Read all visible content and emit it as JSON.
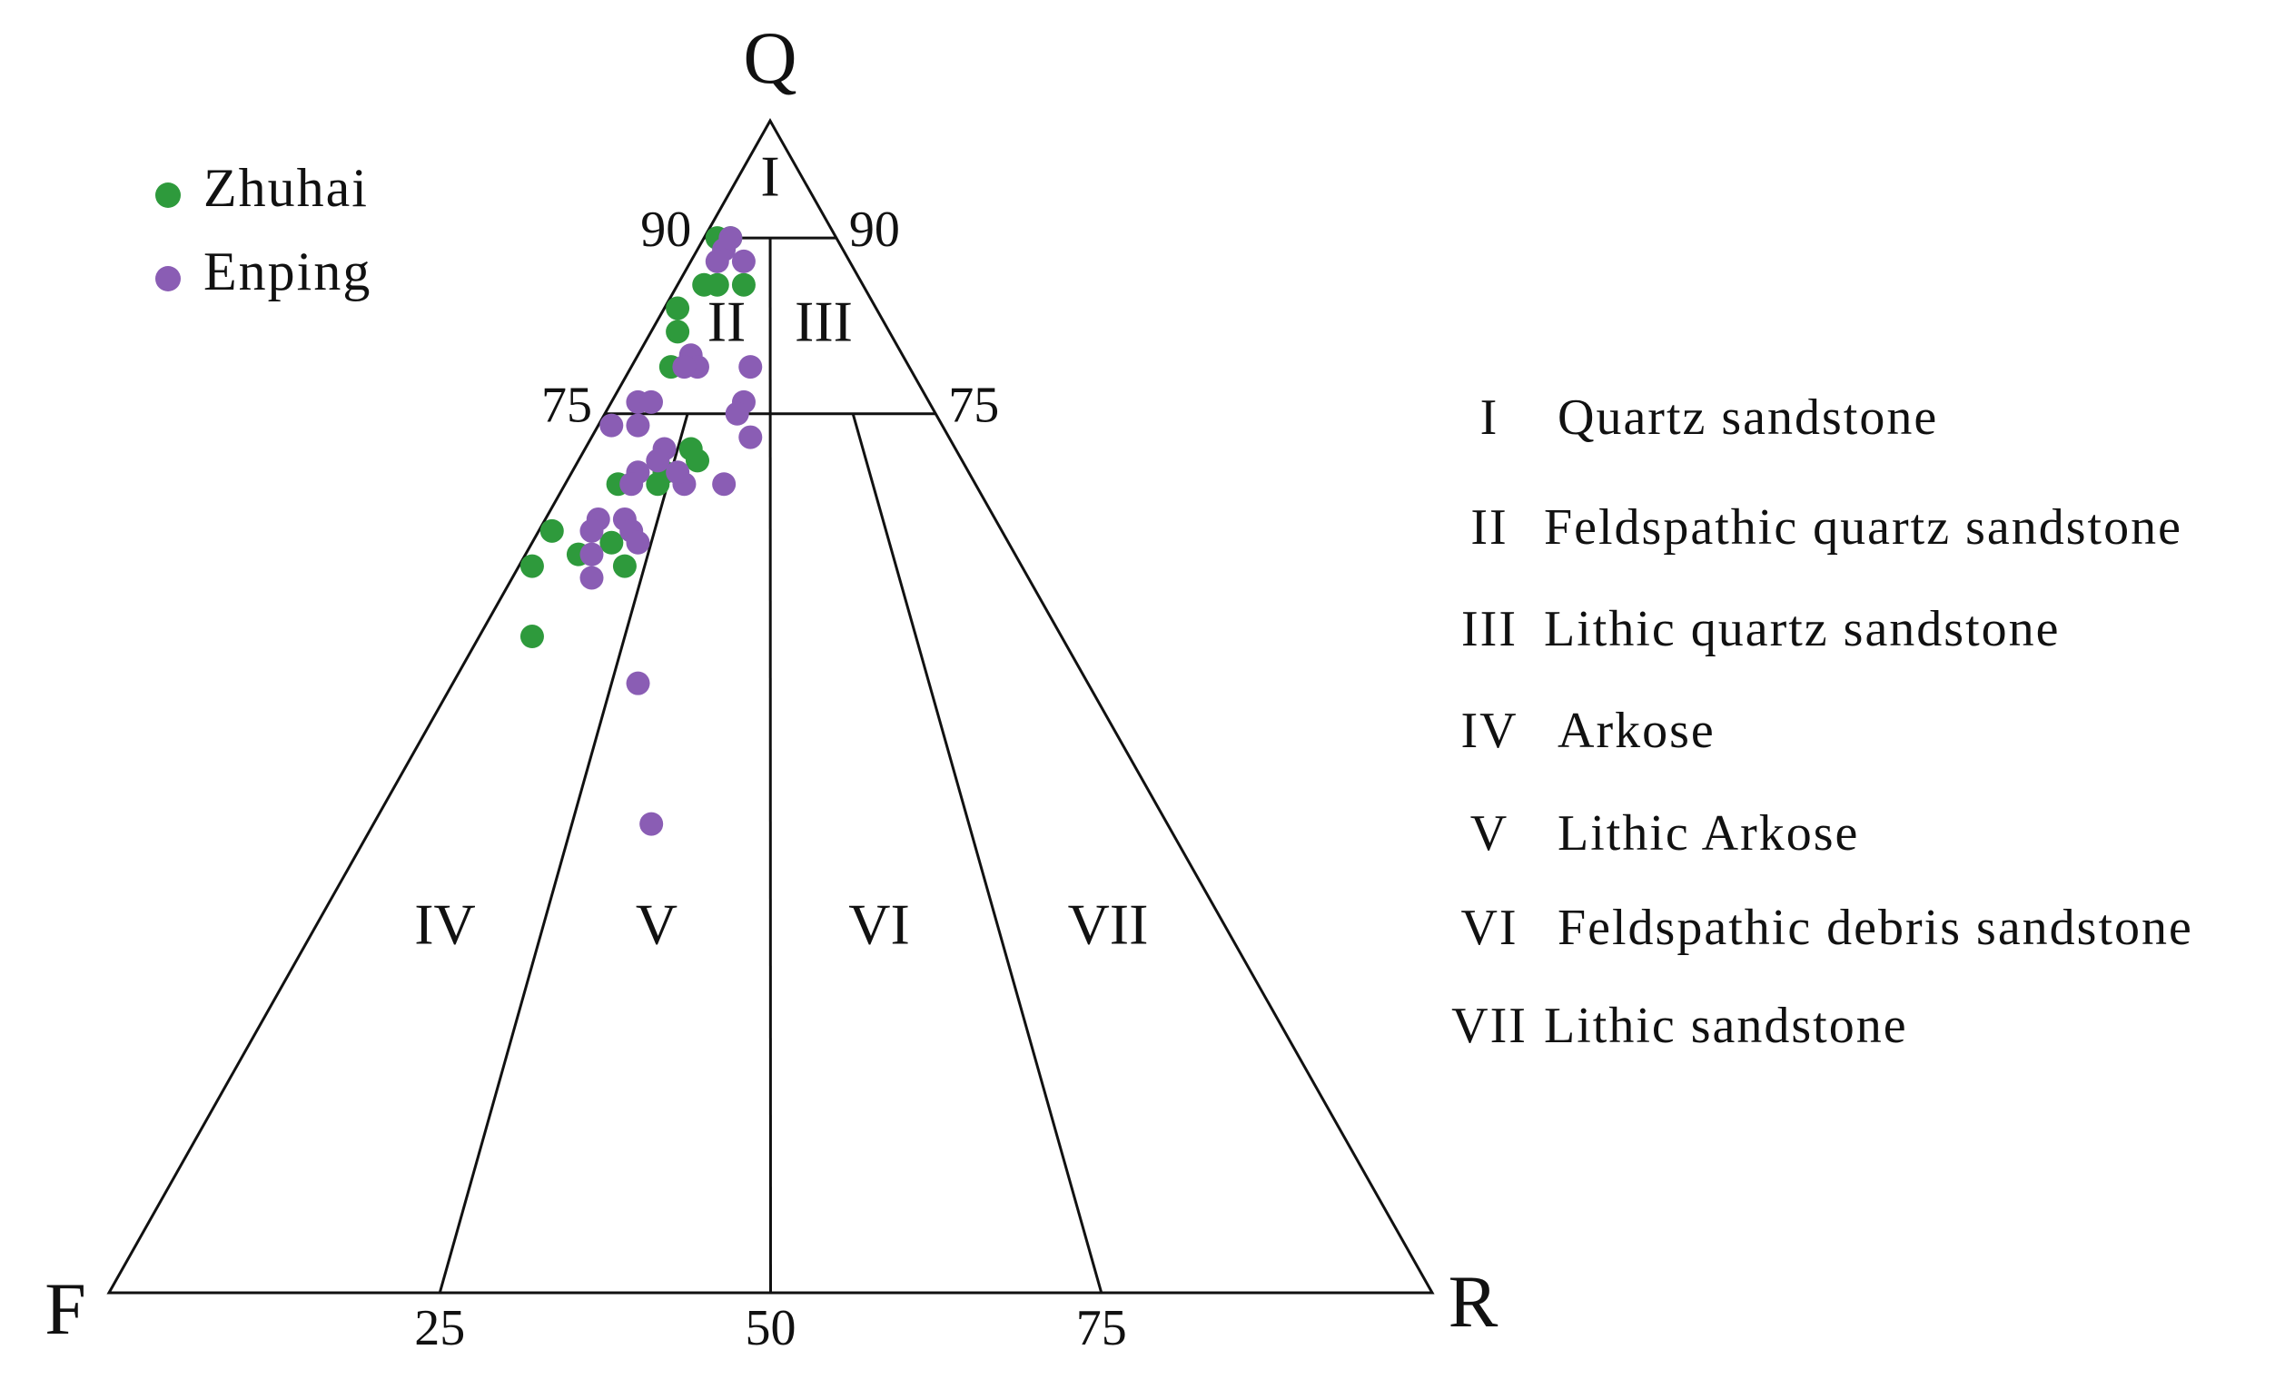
{
  "chart_data": {
    "type": "ternary",
    "vertices": {
      "top": "Q",
      "left": "F",
      "right": "R"
    },
    "q_ticks": [
      90,
      75
    ],
    "base_ticks": [
      25,
      50,
      75
    ],
    "fields": [
      {
        "numeral": "I",
        "name": "Quartz sandstone"
      },
      {
        "numeral": "II",
        "name": "Feldspathic quartz sandstone"
      },
      {
        "numeral": "III",
        "name": "Lithic quartz sandstone"
      },
      {
        "numeral": "IV",
        "name": "Arkose"
      },
      {
        "numeral": "V",
        "name": "Lithic Arkose"
      },
      {
        "numeral": "VI",
        "name": "Feldspathic debris sandstone"
      },
      {
        "numeral": "VII",
        "name": "Lithic sandstone"
      }
    ],
    "series": [
      {
        "name": "Zhuhai",
        "color": "#2e9a3c",
        "Q": [
          90,
          90,
          86,
          86,
          86,
          84,
          82,
          79,
          72,
          71,
          70,
          69,
          69,
          65,
          62,
          63,
          64,
          62,
          56,
          70
        ],
        "F": [
          9,
          8,
          12,
          11,
          9,
          15,
          16,
          18,
          20,
          20,
          23,
          24,
          27,
          34,
          37,
          33,
          30,
          30,
          40,
          23
        ],
        "R": [
          1,
          2,
          2,
          3,
          5,
          1,
          2,
          3,
          8,
          9,
          7,
          7,
          4,
          1,
          1,
          4,
          6,
          8,
          4,
          7
        ]
      },
      {
        "name": "Enping",
        "color": "#8a5db4",
        "Q": [
          89,
          88,
          88,
          90,
          80,
          79,
          79,
          79,
          76,
          75,
          76,
          76,
          74,
          74,
          73,
          72,
          71,
          70,
          69,
          69,
          69,
          66,
          66,
          65,
          65,
          63,
          64,
          61,
          52,
          40,
          70
        ],
        "F": [
          9,
          10,
          8,
          8,
          16,
          16,
          17,
          12,
          14,
          15,
          22,
          21,
          25,
          23,
          15,
          22,
          23,
          25,
          26,
          22,
          19,
          30,
          28,
          31,
          28,
          32,
          28,
          33,
          34,
          39,
          22
        ],
        "R": [
          2,
          2,
          4,
          2,
          4,
          5,
          4,
          9,
          10,
          10,
          2,
          3,
          1,
          3,
          12,
          6,
          6,
          5,
          5,
          9,
          12,
          4,
          6,
          4,
          7,
          5,
          8,
          6,
          14,
          21,
          8
        ]
      }
    ]
  }
}
